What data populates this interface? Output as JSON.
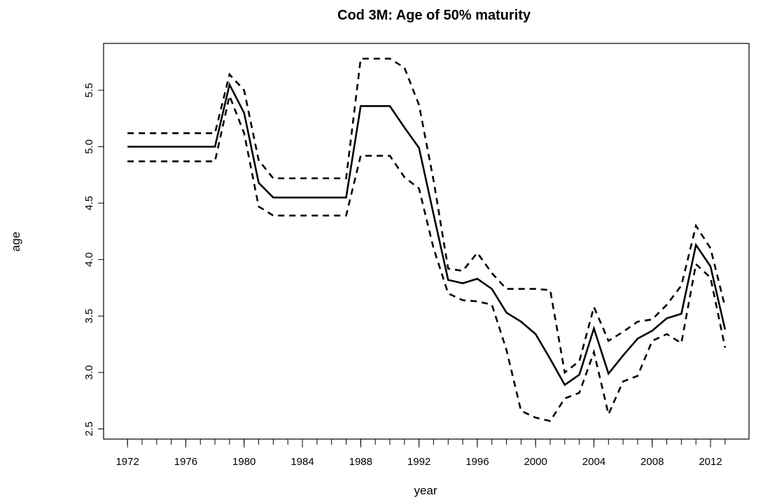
{
  "chart_data": {
    "type": "line",
    "title": "Cod 3M: Age of 50% maturity",
    "xlabel": "year",
    "ylabel": "age",
    "x": [
      1972,
      1973,
      1974,
      1975,
      1976,
      1977,
      1978,
      1979,
      1980,
      1981,
      1982,
      1983,
      1984,
      1985,
      1986,
      1987,
      1988,
      1989,
      1990,
      1991,
      1992,
      1993,
      1994,
      1995,
      1996,
      1997,
      1998,
      1999,
      2000,
      2001,
      2002,
      2003,
      2004,
      2005,
      2006,
      2007,
      2008,
      2009,
      2010,
      2011,
      2012,
      2013
    ],
    "series": [
      {
        "color": "#000000",
        "style": "solid",
        "values": [
          5.0,
          5.0,
          5.0,
          5.0,
          5.0,
          5.0,
          5.0,
          5.55,
          5.3,
          4.68,
          4.55,
          4.55,
          4.55,
          4.55,
          4.55,
          4.55,
          5.36,
          5.36,
          5.36,
          5.17,
          4.99,
          4.4,
          3.82,
          3.79,
          3.83,
          3.74,
          3.53,
          3.45,
          3.34,
          3.12,
          2.89,
          2.98,
          3.39,
          2.99,
          3.15,
          3.3,
          3.37,
          3.48,
          3.52,
          4.13,
          3.94,
          3.38
        ]
      },
      {
        "color": "#000000",
        "style": "dashed",
        "values": [
          5.12,
          5.12,
          5.12,
          5.12,
          5.12,
          5.12,
          5.12,
          5.64,
          5.5,
          4.88,
          4.72,
          4.72,
          4.72,
          4.72,
          4.72,
          4.72,
          5.78,
          5.78,
          5.78,
          5.7,
          5.37,
          4.7,
          3.92,
          3.9,
          4.06,
          3.88,
          3.74,
          3.74,
          3.74,
          3.73,
          3.0,
          3.1,
          3.58,
          3.28,
          3.36,
          3.45,
          3.47,
          3.6,
          3.77,
          4.3,
          4.1,
          3.58
        ]
      },
      {
        "color": "#000000",
        "style": "dashed",
        "values": [
          4.87,
          4.87,
          4.87,
          4.87,
          4.87,
          4.87,
          4.87,
          5.45,
          5.12,
          4.47,
          4.39,
          4.39,
          4.39,
          4.39,
          4.39,
          4.39,
          4.92,
          4.92,
          4.92,
          4.73,
          4.63,
          4.1,
          3.7,
          3.64,
          3.63,
          3.6,
          3.2,
          2.66,
          2.6,
          2.57,
          2.77,
          2.82,
          3.18,
          2.63,
          2.92,
          2.97,
          3.28,
          3.34,
          3.26,
          3.96,
          3.84,
          3.22
        ]
      }
    ],
    "xlim": [
      1970.36,
      2014.64
    ],
    "xticks": [
      1972,
      1976,
      1980,
      1984,
      1988,
      1992,
      1996,
      2000,
      2004,
      2008,
      2012
    ],
    "ylim": [
      2.41,
      5.915
    ],
    "yticks": [
      2.5,
      {
        "value": 3,
        "label": "3.0"
      },
      3.5,
      {
        "value": 4,
        "label": "4.0"
      },
      4.5,
      {
        "value": 5,
        "label": "5.0"
      },
      5.5
    ]
  }
}
